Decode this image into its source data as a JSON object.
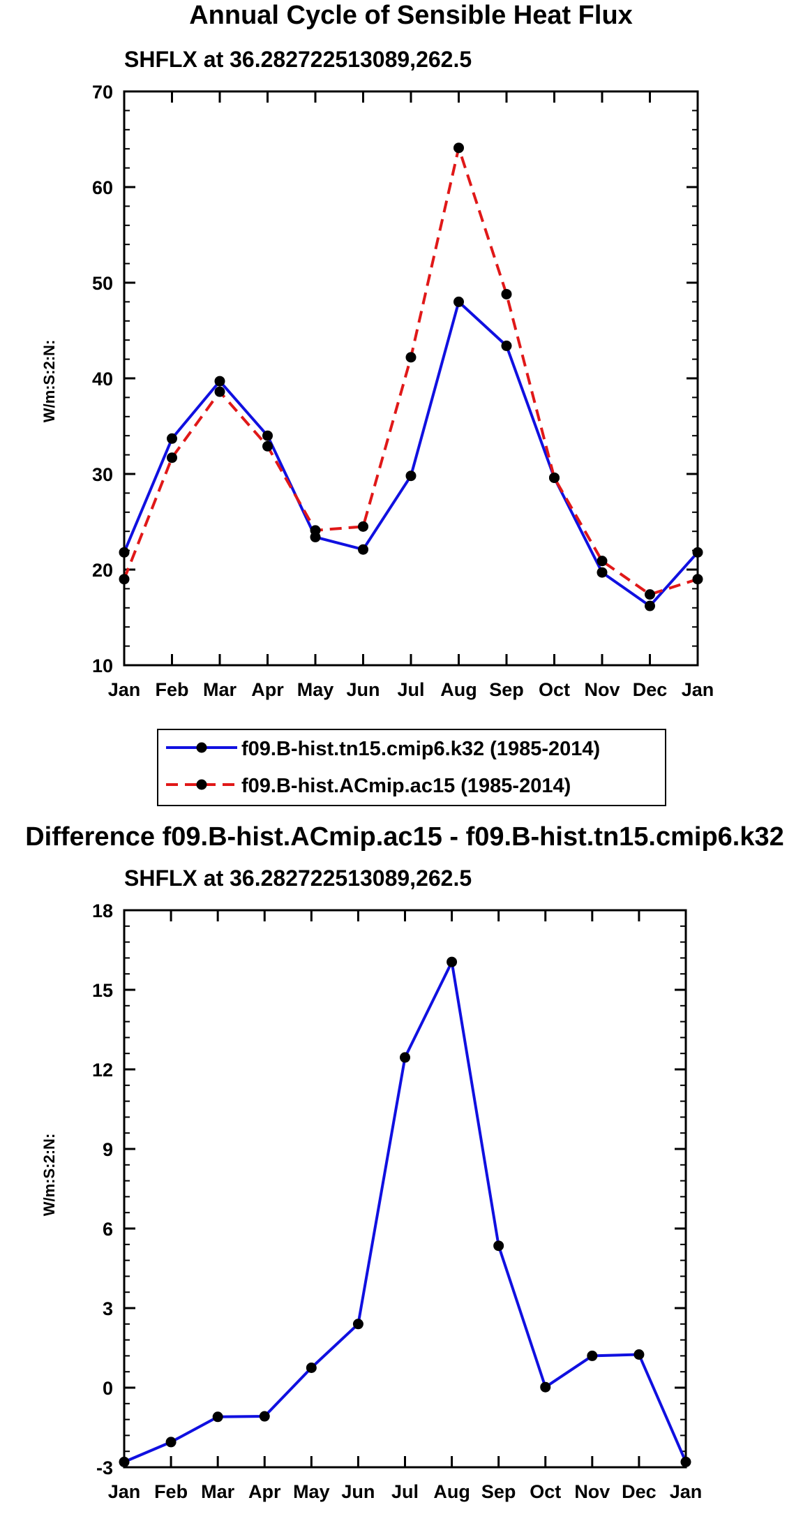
{
  "chart_data": [
    {
      "type": "line",
      "title": "Annual Cycle of Sensible Heat Flux",
      "subtitle": "SHFLX at 36.282722513089,262.5",
      "xlabel": "",
      "ylabel": "W/m:S:2:N:",
      "categories": [
        "Jan",
        "Feb",
        "Mar",
        "Apr",
        "May",
        "Jun",
        "Jul",
        "Aug",
        "Sep",
        "Oct",
        "Nov",
        "Dec",
        "Jan"
      ],
      "ylim": [
        10,
        70
      ],
      "yticks": [
        "10",
        "20",
        "30",
        "40",
        "50",
        "60",
        "70"
      ],
      "legend_position": "bottom",
      "series": [
        {
          "name": "f09.B-hist.tn15.cmip6.k32 (1985-2014)",
          "color": "#1010e0",
          "style": "solid",
          "values": [
            21.8,
            33.7,
            39.7,
            34.0,
            23.4,
            22.1,
            29.8,
            48.0,
            43.4,
            29.6,
            19.7,
            16.2,
            21.8
          ]
        },
        {
          "name": "f09.B-hist.ACmip.ac15 (1985-2014)",
          "color": "#e01818",
          "style": "dashed",
          "values": [
            19.0,
            31.7,
            38.6,
            32.9,
            24.1,
            24.5,
            42.2,
            64.1,
            48.8,
            29.6,
            20.9,
            17.4,
            19.0
          ]
        }
      ]
    },
    {
      "type": "line",
      "title": "Difference f09.B-hist.ACmip.ac15 - f09.B-hist.tn15.cmip6.k32",
      "subtitle": "SHFLX at 36.282722513089,262.5",
      "xlabel": "",
      "ylabel": "W/m:S:2:N:",
      "categories": [
        "Jan",
        "Feb",
        "Mar",
        "Apr",
        "May",
        "Jun",
        "Jul",
        "Aug",
        "Sep",
        "Oct",
        "Nov",
        "Dec",
        "Jan"
      ],
      "ylim": [
        -3,
        18
      ],
      "yticks": [
        "-3",
        "0",
        "3",
        "6",
        "9",
        "12",
        "15",
        "18"
      ],
      "series": [
        {
          "name": "difference",
          "color": "#1010e0",
          "style": "solid",
          "values": [
            -2.8,
            -2.05,
            -1.1,
            -1.08,
            0.75,
            2.4,
            12.45,
            16.05,
            5.35,
            0.02,
            1.2,
            1.25,
            -2.8
          ]
        }
      ]
    }
  ]
}
